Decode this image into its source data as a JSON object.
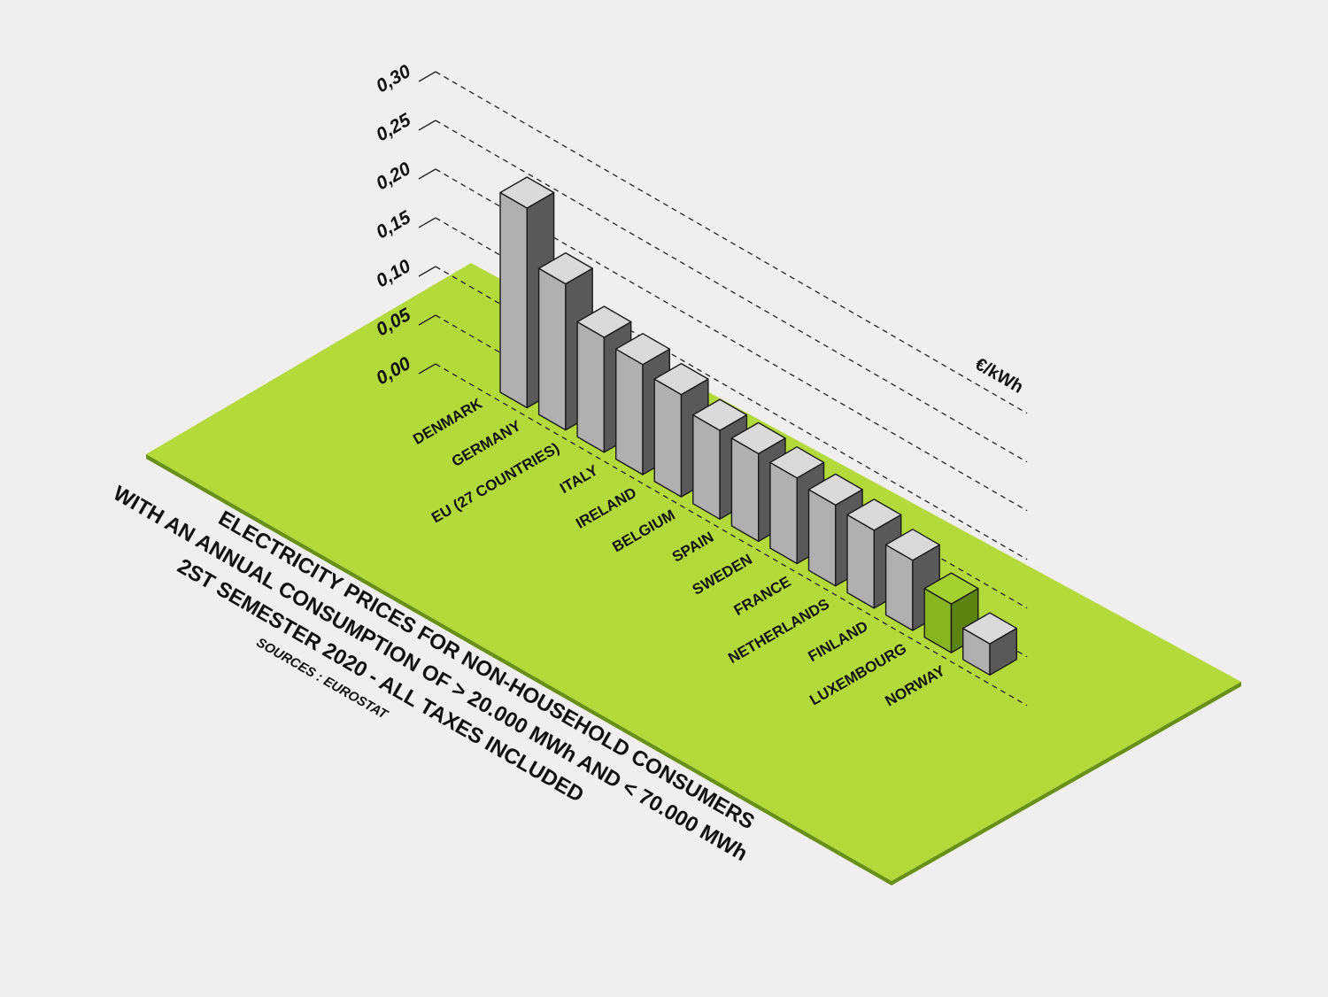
{
  "chart_data": {
    "type": "bar",
    "unit": "€/kWh",
    "y_ticks": [
      "0,00",
      "0,05",
      "0,10",
      "0,15",
      "0,20",
      "0,25",
      "0,30"
    ],
    "ylim": [
      0,
      0.3
    ],
    "categories": [
      "DENMARK",
      "GERMANY",
      "EU (27 COUNTRIES)",
      "ITALY",
      "IRELAND",
      "BELGIUM",
      "SPAIN",
      "SWEDEN",
      "FRANCE",
      "NETHERLANDS",
      "FINLAND",
      "LUXEMBOURG",
      "NORWAY"
    ],
    "values": [
      0.205,
      0.15,
      0.118,
      0.113,
      0.105,
      0.091,
      0.09,
      0.088,
      0.083,
      0.08,
      0.072,
      0.05,
      0.032
    ],
    "highlight": "LUXEMBOURG",
    "title_lines": [
      "ELECTRICITY PRICES FOR NON-HOUSEHOLD CONSUMERS",
      "WITH AN ANNUAL CONSUMPTION OF > 20.000 MWh AND < 70.000 MWh",
      "2ST SEMESTER 2020 - ALL TAXES INCLUDED"
    ],
    "source": "SOURCES : EUROSTAT",
    "grid": true
  },
  "colors": {
    "background": "#efefef",
    "plane_top": "#b3d93a",
    "plane_edge": "#6a8f17",
    "bar_top": "#dadada",
    "bar_front": "#b0b0b0",
    "bar_side": "#595959",
    "highlight_top": "#a4d12f",
    "highlight_front": "#88b41f",
    "highlight_side": "#5e8210",
    "highlight_label": "#ffffff",
    "text": "#111111"
  }
}
